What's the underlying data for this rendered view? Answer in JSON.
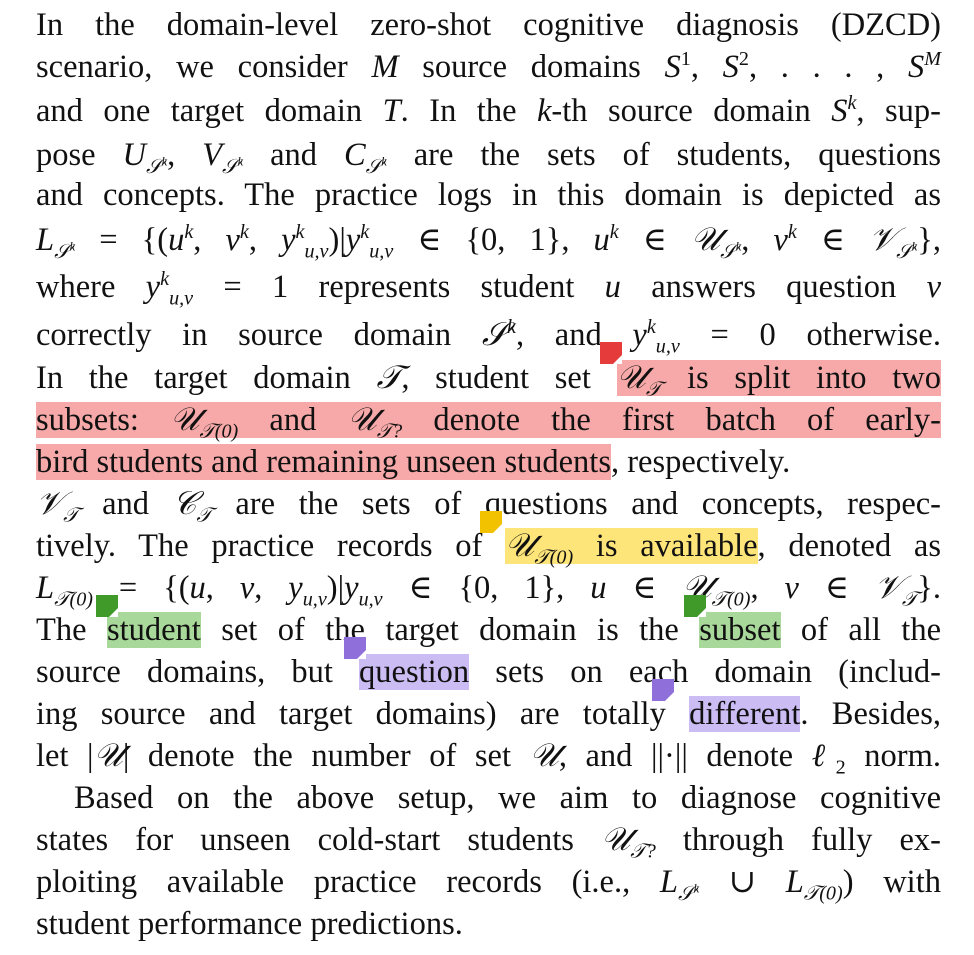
{
  "lines": {
    "l1": "In the domain-level zero-shot cognitive diagnosis (DZCD)",
    "l2": {
      "a": "scenario, we consider ",
      "M": "M",
      "b": " source domains ",
      "S": "S",
      "c": "1",
      "d": ", ",
      "e": "2",
      "f": ", . . . , ",
      "g": "M"
    },
    "l3": {
      "a": "and one target domain ",
      "T": "T",
      "b": ". In the ",
      "k": "k",
      "c": "-th source domain ",
      "d": "k",
      "e": ", sup-"
    },
    "l4": {
      "a": "pose ",
      "U": "U",
      "sub": "Sk",
      "b": ", ",
      "V": "V",
      "c": " and ",
      "C": "C",
      "d": " are the sets of students, questions"
    },
    "l5": "and concepts. The practice logs in this domain is depicted as",
    "l6": "L_{S^k} = {(u^k, v^k, y^k_{u,v}) | y^k_{u,v} ∈ {0, 1}, u^k ∈ U_{S^k}, v^k ∈ V_{S^k}},",
    "l7": {
      "a": "where ",
      "y": "y",
      "sup": "k",
      "sub": "u,v",
      "b": " = 1 represents student ",
      "u": "u",
      "c": " answers question ",
      "v": "v"
    },
    "l8": {
      "a": "correctly in source domain ",
      "b": ", and ",
      "c": " = 0 otherwise."
    },
    "l9": {
      "a": "In the target domain ",
      "b": ", student set ",
      "hl": " is split into two"
    },
    "l10": {
      "a": "subsets: ",
      "b": " and ",
      "c": " denote the first batch of early-"
    },
    "l11": {
      "hl": "bird students and remaining unseen students",
      "rest": ", respectively."
    },
    "l12": {
      "a": " and ",
      "b": " are the sets of questions and concepts, respec-"
    },
    "l13": {
      "a": "tively. The practice records of ",
      "hl": " is available",
      "b": ", denoted as"
    },
    "l14": "L_{T(0)} = {(u, v, y_{u,v}) | y_{u,v} ∈ {0, 1}, u ∈ U_{T(0)}, v ∈ V_T}.",
    "l15": {
      "a": "The ",
      "hl1": "student",
      "b": " set of the target domain is the ",
      "hl2": "subset",
      "c": " of all the"
    },
    "l16": {
      "a": "source domains, but ",
      "hl": "question",
      "b": " sets on each domain (includ-"
    },
    "l17": {
      "a": "ing source and target domains) are totally ",
      "hl": "different",
      "b": ". Besides,"
    },
    "l18": {
      "a": "let |",
      "b": "| denote the number of set ",
      "c": ", and ||·|| denote ",
      "d": "2",
      "e": " norm."
    },
    "l19": "Based on the above setup, we aim to diagnose cognitive",
    "l20": {
      "a": "states for unseen cold-start students ",
      "b": " through fully ex-"
    },
    "l21": {
      "a": "ploiting available practice records (i.e., ",
      "b": " ∪ ",
      "c": ") with"
    },
    "l22": "student performance predictions."
  },
  "colors": {
    "red": "#f7a9a9",
    "red_note": "#e53b3b",
    "yellow": "#fde57a",
    "yellow_note": "#f2c200",
    "green": "#a9d99a",
    "green_note": "#3f9a2a",
    "purple": "#cbbcf3",
    "purple_note": "#8f6fd9"
  }
}
